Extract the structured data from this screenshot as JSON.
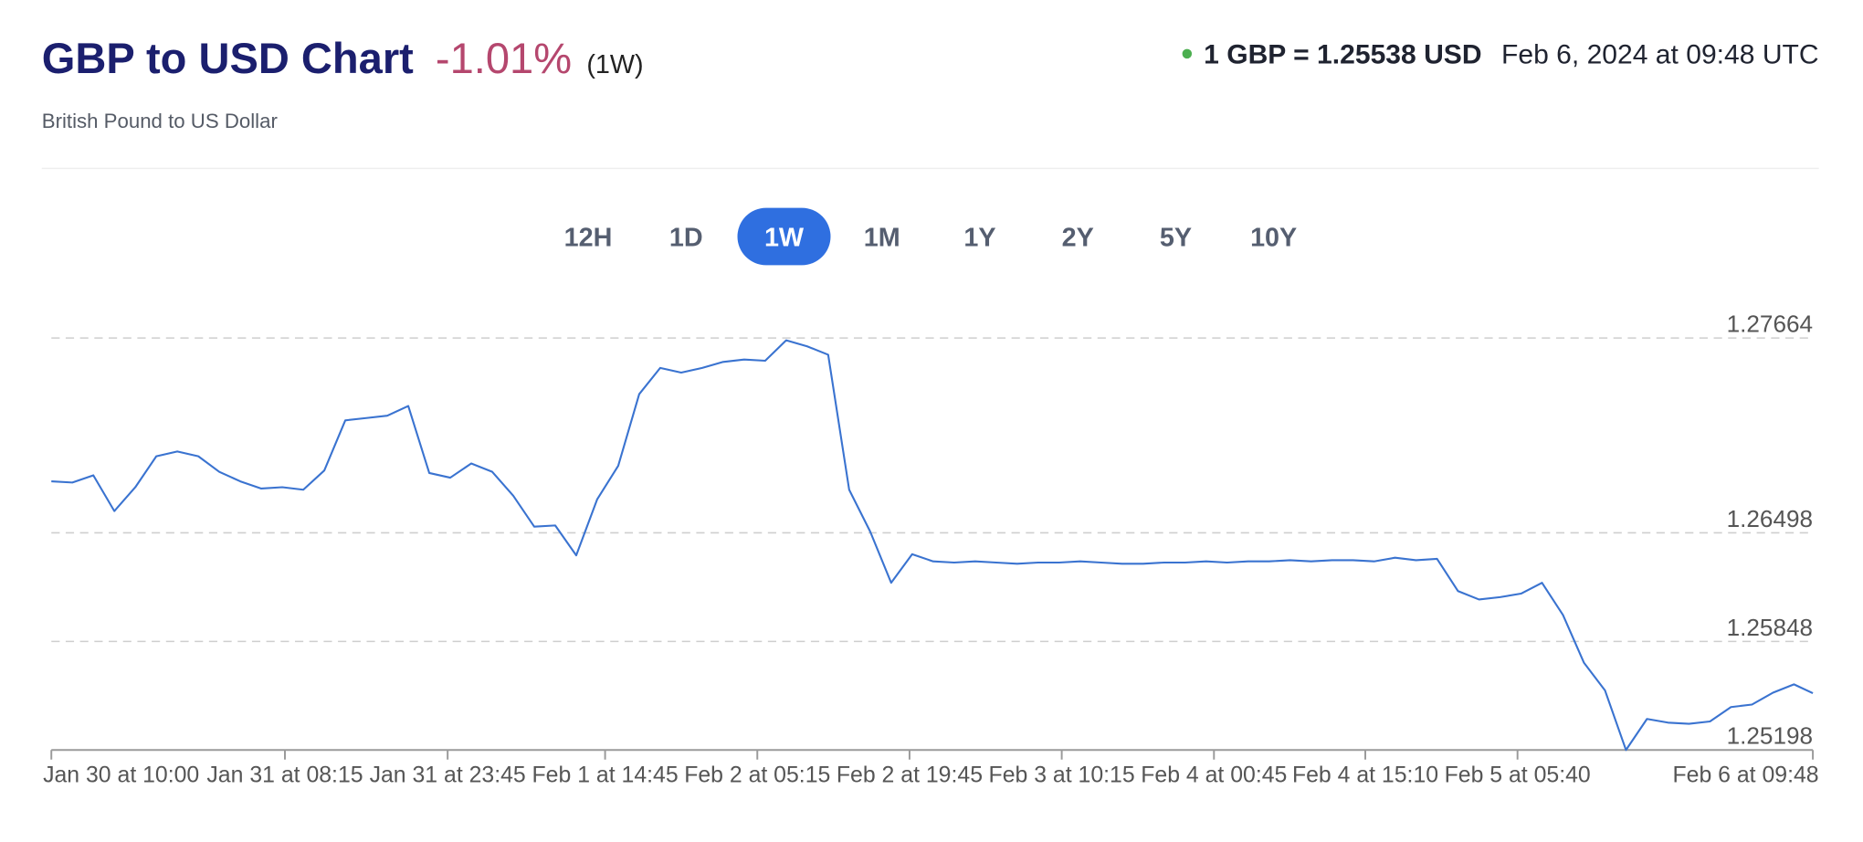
{
  "chart_data": {
    "type": "line",
    "title": "GBP to USD Chart",
    "change": "-1.01%",
    "period": "(1W)",
    "subtitle": "British Pound to US Dollar",
    "rate": "1 GBP = 1.25538 USD",
    "timestamp": "Feb 6, 2024 at 09:48 UTC",
    "ranges": [
      "12H",
      "1D",
      "1W",
      "1M",
      "1Y",
      "2Y",
      "5Y",
      "10Y"
    ],
    "active_range": "1W",
    "color": "#3a73d0",
    "grid": true,
    "ylim": [
      1.25198,
      1.27664
    ],
    "yticks": [
      1.27664,
      1.26498,
      1.25848,
      1.25198
    ],
    "xlim": [
      "Jan 30 at 10:00",
      "Feb 6 at 09:48"
    ],
    "xticks": [
      "Jan 30 at 10:00",
      "Jan 31 at 08:15",
      "Jan 31 at 23:45",
      "Feb 1 at 14:45",
      "Feb 2 at 05:15",
      "Feb 2 at 19:45",
      "Feb 3 at 10:15",
      "Feb 4 at 00:45",
      "Feb 4 at 15:10",
      "Feb 5 at 05:40",
      "Feb 6 at 09:48"
    ],
    "x": [
      "Jan 30 at 10:00",
      "Jan 30 at 12:00",
      "Jan 30 at 14:00",
      "Jan 30 at 16:00",
      "Jan 30 at 18:00",
      "Jan 30 at 20:00",
      "Jan 30 at 22:00",
      "Jan 31 at 00:00",
      "Jan 31 at 02:00",
      "Jan 31 at 04:00",
      "Jan 31 at 06:00",
      "Jan 31 at 08:00",
      "Jan 31 at 10:00",
      "Jan 31 at 12:00",
      "Jan 31 at 14:00",
      "Jan 31 at 16:00",
      "Jan 31 at 18:00",
      "Jan 31 at 20:00",
      "Jan 31 at 22:00",
      "Feb 1 at 00:00",
      "Feb 1 at 02:00",
      "Feb 1 at 04:00",
      "Feb 1 at 06:00",
      "Feb 1 at 08:00",
      "Feb 1 at 10:00",
      "Feb 1 at 12:00",
      "Feb 1 at 14:00",
      "Feb 1 at 16:00",
      "Feb 1 at 18:00",
      "Feb 1 at 20:00",
      "Feb 1 at 22:00",
      "Feb 2 at 00:00",
      "Feb 2 at 02:00",
      "Feb 2 at 04:00",
      "Feb 2 at 06:00",
      "Feb 2 at 08:00",
      "Feb 2 at 10:00",
      "Feb 2 at 12:00",
      "Feb 2 at 14:00",
      "Feb 2 at 16:00",
      "Feb 2 at 18:00",
      "Feb 2 at 20:00",
      "Feb 2 at 22:00",
      "Feb 3 at 00:00",
      "Feb 3 at 02:00",
      "Feb 3 at 04:00",
      "Feb 3 at 06:00",
      "Feb 3 at 08:00",
      "Feb 3 at 10:00",
      "Feb 3 at 12:00",
      "Feb 3 at 14:00",
      "Feb 3 at 16:00",
      "Feb 3 at 18:00",
      "Feb 3 at 20:00",
      "Feb 3 at 22:00",
      "Feb 4 at 00:00",
      "Feb 4 at 02:00",
      "Feb 4 at 04:00",
      "Feb 4 at 06:00",
      "Feb 4 at 08:00",
      "Feb 4 at 10:00",
      "Feb 4 at 12:00",
      "Feb 4 at 14:00",
      "Feb 4 at 16:00",
      "Feb 4 at 18:00",
      "Feb 4 at 20:00",
      "Feb 4 at 22:00",
      "Feb 5 at 00:00",
      "Feb 5 at 02:00",
      "Feb 5 at 04:00",
      "Feb 5 at 06:00",
      "Feb 5 at 08:00",
      "Feb 5 at 10:00",
      "Feb 5 at 12:00",
      "Feb 5 at 14:00",
      "Feb 5 at 16:00",
      "Feb 5 at 18:00",
      "Feb 5 at 20:00",
      "Feb 5 at 22:00",
      "Feb 6 at 00:00",
      "Feb 6 at 02:00",
      "Feb 6 at 04:00",
      "Feb 6 at 06:00",
      "Feb 6 at 08:00",
      "Feb 6 at 09:48"
    ],
    "values": [
      1.26806,
      1.26799,
      1.26842,
      1.26628,
      1.26771,
      1.26956,
      1.26985,
      1.26956,
      1.26863,
      1.26806,
      1.26763,
      1.26771,
      1.26756,
      1.26871,
      1.27171,
      1.27185,
      1.27199,
      1.27257,
      1.26856,
      1.26828,
      1.26913,
      1.26863,
      1.2672,
      1.26535,
      1.26542,
      1.26363,
      1.26699,
      1.26899,
      1.27328,
      1.27485,
      1.27457,
      1.27485,
      1.27521,
      1.27535,
      1.27528,
      1.2765,
      1.27614,
      1.27564,
      1.26756,
      1.26506,
      1.26199,
      1.2637,
      1.26327,
      1.2632,
      1.26327,
      1.2632,
      1.26313,
      1.2632,
      1.2632,
      1.26327,
      1.2632,
      1.26313,
      1.26313,
      1.2632,
      1.2632,
      1.26327,
      1.2632,
      1.26327,
      1.26327,
      1.26334,
      1.26327,
      1.26334,
      1.26334,
      1.26327,
      1.26349,
      1.26334,
      1.26342,
      1.26149,
      1.26099,
      1.26113,
      1.26134,
      1.26199,
      1.26006,
      1.2572,
      1.25555,
      1.25198,
      1.25384,
      1.25362,
      1.25355,
      1.25369,
      1.25455,
      1.2547,
      1.25541,
      1.25591,
      1.25538
    ]
  }
}
